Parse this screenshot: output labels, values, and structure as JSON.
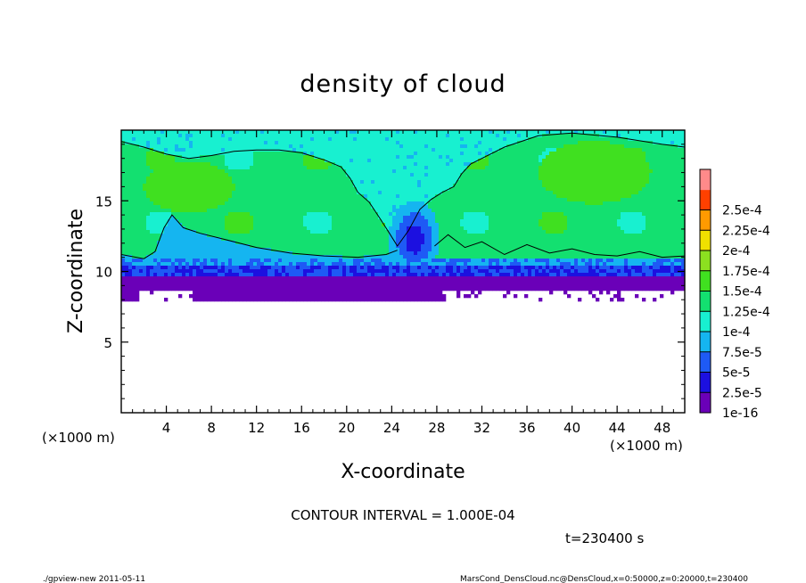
{
  "chart_data": {
    "type": "heatmap",
    "title": "density of cloud",
    "xlabel": "X-coordinate",
    "ylabel": "Z-coordinate",
    "x_unit": "(×1000 m)",
    "z_unit": "(×1000 m)",
    "xlim": [
      0,
      50
    ],
    "ylim": [
      0,
      20
    ],
    "x_ticks": [
      {
        "value": 4,
        "label": "4"
      },
      {
        "value": 8,
        "label": "8"
      },
      {
        "value": 12,
        "label": "12"
      },
      {
        "value": 16,
        "label": "16"
      },
      {
        "value": 20,
        "label": "20"
      },
      {
        "value": 24,
        "label": "24"
      },
      {
        "value": 28,
        "label": "28"
      },
      {
        "value": 32,
        "label": "32"
      },
      {
        "value": 36,
        "label": "36"
      },
      {
        "value": 40,
        "label": "40"
      },
      {
        "value": 44,
        "label": "44"
      },
      {
        "value": 48,
        "label": "48"
      }
    ],
    "y_ticks": [
      {
        "value": 5,
        "label": "5"
      },
      {
        "value": 10,
        "label": "10"
      },
      {
        "value": 15,
        "label": "15"
      }
    ],
    "colorbar": {
      "levels": [
        "1e-16",
        "2.5e-5",
        "5e-5",
        "7.5e-5",
        "1e-4",
        "1.25e-4",
        "1.5e-4",
        "1.75e-4",
        "2e-4",
        "2.25e-4",
        "2.5e-4"
      ],
      "colors": [
        "#6a00b8",
        "#1c10e0",
        "#1e5af5",
        "#15b5f0",
        "#18f0d0",
        "#13e070",
        "#40e020",
        "#8ce020",
        "#f0e000",
        "#ff9a00",
        "#ff4000",
        "#ff8a8a"
      ]
    },
    "cloud_field": {
      "cloud_base_km": 8.0,
      "band_base_km": 9.7,
      "band_top_km": 11.0,
      "cloud_top_km": 20.0,
      "notes_gap_x_km": [
        [
          1.5,
          6.2
        ],
        [
          28.5,
          50.0
        ]
      ],
      "columns": [
        {
          "x_km": 26.0,
          "z_km": 12.3,
          "strength": 1.0
        }
      ],
      "contour_level": 0.0001,
      "contour_top_km": [
        [
          0.0,
          19.2
        ],
        [
          2.0,
          18.8
        ],
        [
          4.0,
          18.3
        ],
        [
          6.0,
          18.0
        ],
        [
          8.0,
          18.2
        ],
        [
          10.0,
          18.5
        ],
        [
          12.0,
          18.6
        ],
        [
          14.0,
          18.6
        ],
        [
          16.0,
          18.4
        ],
        [
          18.0,
          17.9
        ],
        [
          19.5,
          17.4
        ],
        [
          20.3,
          16.6
        ],
        [
          21.0,
          15.6
        ],
        [
          22.0,
          14.9
        ],
        [
          23.0,
          13.7
        ],
        [
          23.8,
          12.7
        ],
        [
          24.5,
          11.8
        ],
        [
          25.5,
          12.9
        ],
        [
          26.5,
          14.4
        ],
        [
          27.5,
          15.1
        ],
        [
          28.5,
          15.6
        ],
        [
          29.5,
          16.0
        ],
        [
          30.2,
          16.9
        ],
        [
          31.0,
          17.6
        ],
        [
          32.0,
          18.0
        ],
        [
          34.0,
          18.8
        ],
        [
          37.0,
          19.6
        ],
        [
          40.0,
          19.8
        ],
        [
          44.0,
          19.5
        ],
        [
          48.0,
          19.0
        ],
        [
          50.0,
          18.8
        ]
      ],
      "contour_inner_km": [
        [
          0.0,
          11.2
        ],
        [
          2.0,
          10.9
        ],
        [
          3.0,
          11.4
        ],
        [
          3.8,
          13.1
        ],
        [
          4.5,
          14.0
        ],
        [
          5.5,
          13.1
        ],
        [
          7.0,
          12.7
        ],
        [
          9.0,
          12.3
        ],
        [
          12.0,
          11.7
        ],
        [
          15.0,
          11.3
        ],
        [
          18.0,
          11.1
        ],
        [
          21.0,
          11.0
        ],
        [
          23.5,
          11.2
        ],
        [
          24.5,
          11.5
        ]
      ],
      "contour_right_km": [
        [
          27.8,
          11.8
        ],
        [
          29.0,
          12.6
        ],
        [
          30.5,
          11.7
        ],
        [
          32.0,
          12.1
        ],
        [
          34.0,
          11.2
        ],
        [
          36.0,
          11.9
        ],
        [
          38.0,
          11.3
        ],
        [
          40.0,
          11.6
        ],
        [
          42.0,
          11.2
        ],
        [
          44.0,
          11.1
        ],
        [
          46.0,
          11.4
        ],
        [
          48.0,
          11.0
        ],
        [
          50.0,
          11.1
        ]
      ]
    },
    "legend": "right"
  },
  "footer": {
    "contour_interval": "CONTOUR INTERVAL = 1.000E-04",
    "time": "t=230400 s",
    "program": "./gpview-new  2011-05-11",
    "source": "MarsCond_DensCloud.nc@DensCloud,x=0:50000,z=0:20000,t=230400"
  }
}
